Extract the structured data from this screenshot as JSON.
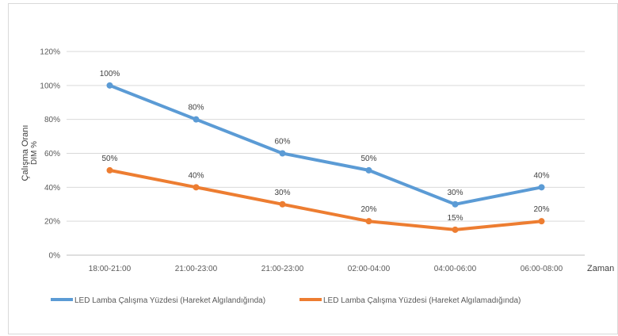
{
  "chart_data": {
    "type": "line",
    "categories": [
      "18:00-21:00",
      "21:00-23:00",
      "21:00-23:00",
      "02:00-04:00",
      "04:00-06:00",
      "06:00-08:00"
    ],
    "series": [
      {
        "name": "LED Lamba Çalışma Yüzdesi (Hareket Algılandığında)",
        "color": "#5b9bd5",
        "values": [
          100,
          80,
          60,
          50,
          30,
          40
        ],
        "labels": [
          "100%",
          "80%",
          "60%",
          "50%",
          "30%",
          "40%"
        ]
      },
      {
        "name": "LED Lamba  Çalışma Yüzdesi (Hareket Algılamadığında)",
        "color": "#ed7d31",
        "values": [
          50,
          40,
          30,
          20,
          15,
          20
        ],
        "labels": [
          "50%",
          "40%",
          "30%",
          "20%",
          "15%",
          "20%"
        ]
      }
    ],
    "yticks": [
      "0%",
      "20%",
      "40%",
      "60%",
      "80%",
      "100%",
      "120%"
    ],
    "ylim": [
      0,
      120
    ],
    "xlabel": "Zaman",
    "ylabel_line1": "Çalışma Oranı",
    "ylabel_line2": "DIM %",
    "grid": true,
    "legend_position": "bottom"
  }
}
